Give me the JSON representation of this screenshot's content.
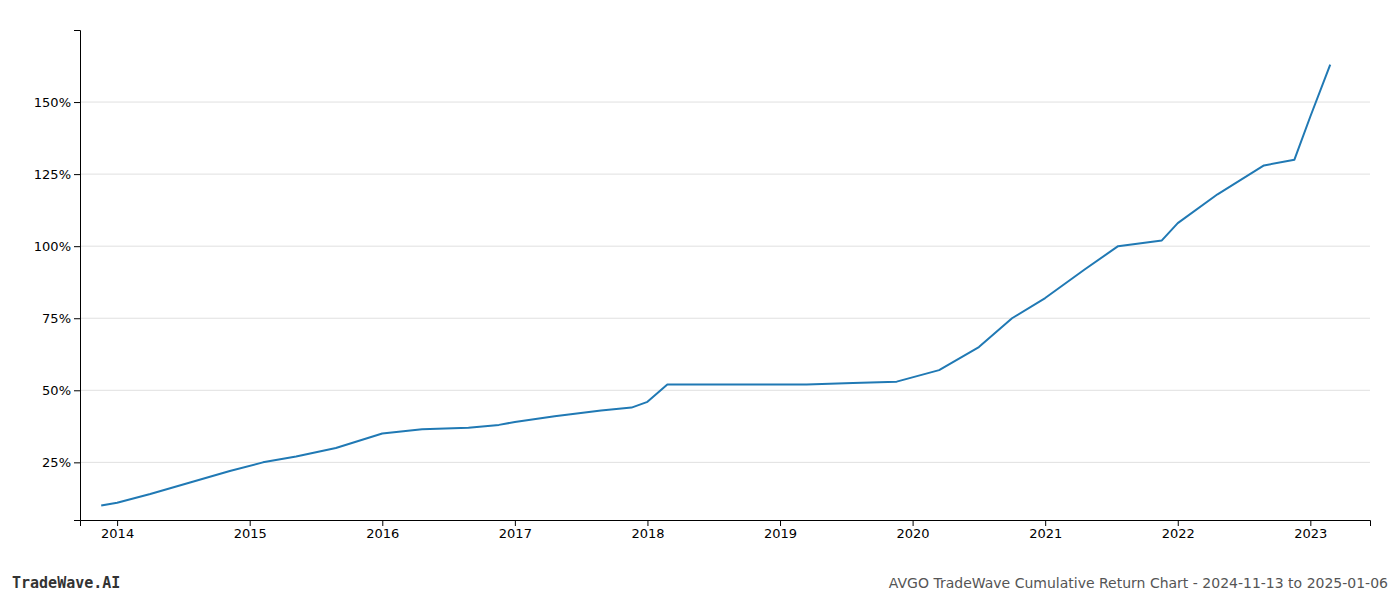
{
  "chart_data": {
    "type": "line",
    "title": "AVGO TradeWave Cumulative Return Chart - 2024-11-13 to 2025-01-06",
    "annotations": [
      "TradeWave.AI"
    ],
    "x": [
      2013.88,
      2014.0,
      2014.25,
      2014.55,
      2014.85,
      2015.1,
      2015.35,
      2015.65,
      2016.0,
      2016.3,
      2016.65,
      2016.88,
      2017.0,
      2017.3,
      2017.65,
      2017.88,
      2018.0,
      2018.15,
      2018.5,
      2018.88,
      2019.0,
      2019.2,
      2019.55,
      2019.88,
      2020.2,
      2020.5,
      2020.75,
      2021.0,
      2021.3,
      2021.55,
      2021.88,
      2022.0,
      2022.3,
      2022.65,
      2022.88,
      2023.0,
      2023.15
    ],
    "values": [
      10,
      11,
      14,
      18,
      22,
      25,
      27,
      30,
      35,
      36.5,
      37,
      38,
      39,
      41,
      43,
      44,
      46,
      52,
      52,
      52,
      52,
      52,
      52.5,
      53,
      57,
      65,
      75,
      82,
      92,
      100,
      102,
      108,
      118,
      128,
      130,
      145,
      163
    ],
    "color": "#2079b4",
    "xlim": [
      2013.72,
      2023.45
    ],
    "xticks": [
      2014,
      2015,
      2016,
      2017,
      2018,
      2019,
      2020,
      2021,
      2022,
      2023
    ],
    "ylim": [
      5,
      175
    ],
    "yticks": [
      {
        "value": 25,
        "label": "25%"
      },
      {
        "value": 50,
        "label": "50%"
      },
      {
        "value": 75,
        "label": "75%"
      },
      {
        "value": 100,
        "label": "100%"
      },
      {
        "value": 125,
        "label": "125%"
      },
      {
        "value": 150,
        "label": "150%"
      }
    ],
    "grid": true
  }
}
